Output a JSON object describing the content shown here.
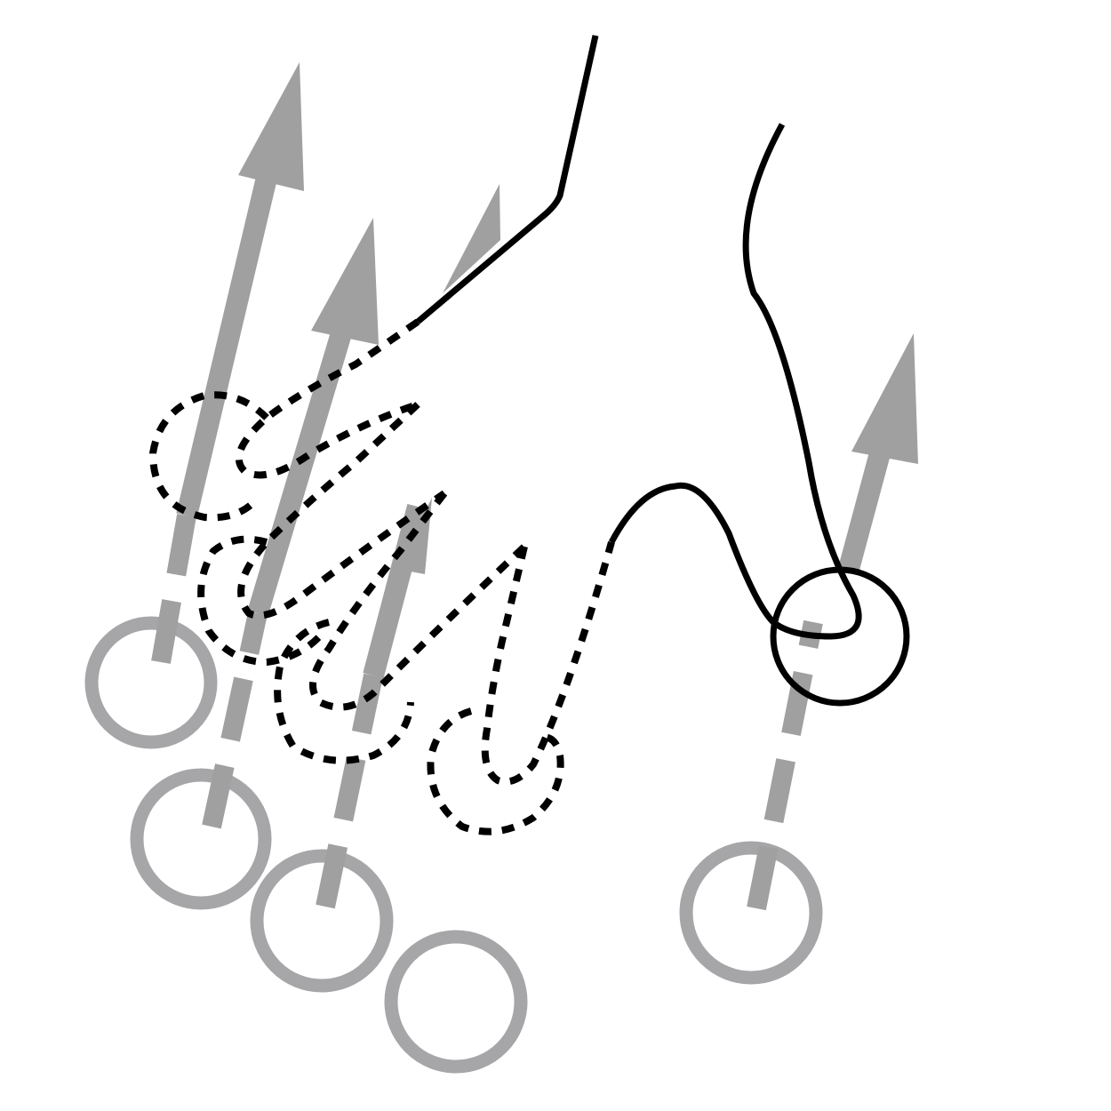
{
  "figure": {
    "description_icon": "five-finger-swipe-up-gesture-icon",
    "colors": {
      "background": "#ffffff",
      "arrow": "#a0a0a0",
      "touch_circle": "#a6a6a8",
      "hand_outline": "#000000"
    },
    "touch_points": [
      {
        "name": "finger-1-touch",
        "direction": "up"
      },
      {
        "name": "finger-2-touch",
        "direction": "up"
      },
      {
        "name": "finger-3-touch",
        "direction": "up"
      },
      {
        "name": "finger-4-touch",
        "direction": "up"
      },
      {
        "name": "thumb-touch",
        "direction": "up"
      }
    ]
  }
}
